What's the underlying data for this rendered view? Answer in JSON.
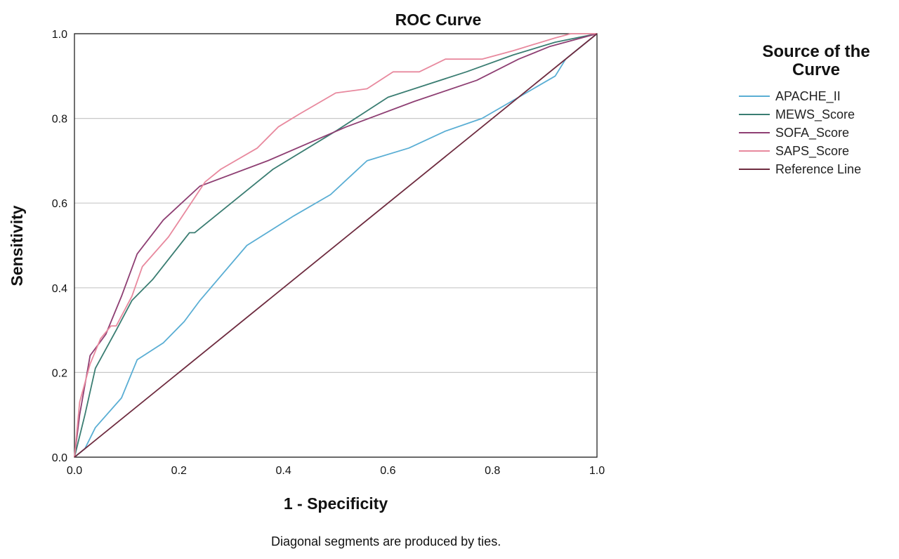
{
  "chart_data": {
    "type": "line",
    "title": "ROC Curve",
    "xlabel": "1 - Specificity",
    "ylabel": "Sensitivity",
    "xlim": [
      0,
      1
    ],
    "ylim": [
      0,
      1
    ],
    "xticks": [
      "0.0",
      "0.2",
      "0.4",
      "0.6",
      "0.8",
      "1.0"
    ],
    "yticks": [
      "0.0",
      "0.2",
      "0.4",
      "0.6",
      "0.8",
      "1.0"
    ],
    "grid": "horizontal",
    "legend": {
      "title_lines": [
        "Source of the",
        "Curve"
      ],
      "placement": "right"
    },
    "footnote": "Diagonal segments are produced by ties.",
    "series": [
      {
        "name": "APACHE_II",
        "color": "#5aaed4",
        "points": [
          [
            0,
            0
          ],
          [
            0.02,
            0.02
          ],
          [
            0.04,
            0.07
          ],
          [
            0.09,
            0.14
          ],
          [
            0.12,
            0.23
          ],
          [
            0.17,
            0.27
          ],
          [
            0.21,
            0.32
          ],
          [
            0.24,
            0.37
          ],
          [
            0.33,
            0.5
          ],
          [
            0.42,
            0.57
          ],
          [
            0.49,
            0.62
          ],
          [
            0.56,
            0.7
          ],
          [
            0.64,
            0.73
          ],
          [
            0.71,
            0.77
          ],
          [
            0.78,
            0.8
          ],
          [
            0.85,
            0.85
          ],
          [
            0.92,
            0.9
          ],
          [
            0.94,
            0.94
          ],
          [
            1.0,
            1.0
          ]
        ]
      },
      {
        "name": "MEWS_Score",
        "color": "#3a7d72",
        "points": [
          [
            0,
            0
          ],
          [
            0.02,
            0.1
          ],
          [
            0.04,
            0.21
          ],
          [
            0.08,
            0.3
          ],
          [
            0.11,
            0.37
          ],
          [
            0.15,
            0.42
          ],
          [
            0.22,
            0.53
          ],
          [
            0.23,
            0.53
          ],
          [
            0.38,
            0.68
          ],
          [
            0.5,
            0.77
          ],
          [
            0.6,
            0.85
          ],
          [
            0.75,
            0.91
          ],
          [
            0.84,
            0.95
          ],
          [
            0.92,
            0.98
          ],
          [
            1.0,
            1.0
          ]
        ]
      },
      {
        "name": "SOFA_Score",
        "color": "#8e3f73",
        "points": [
          [
            0,
            0
          ],
          [
            0.01,
            0.1
          ],
          [
            0.03,
            0.24
          ],
          [
            0.06,
            0.29
          ],
          [
            0.09,
            0.38
          ],
          [
            0.12,
            0.48
          ],
          [
            0.17,
            0.56
          ],
          [
            0.24,
            0.64
          ],
          [
            0.37,
            0.7
          ],
          [
            0.52,
            0.78
          ],
          [
            0.65,
            0.84
          ],
          [
            0.77,
            0.89
          ],
          [
            0.85,
            0.94
          ],
          [
            0.91,
            0.97
          ],
          [
            1.0,
            1.0
          ]
        ]
      },
      {
        "name": "SAPS_Score",
        "color": "#e8899e",
        "points": [
          [
            0,
            0
          ],
          [
            0.01,
            0.13
          ],
          [
            0.03,
            0.22
          ],
          [
            0.05,
            0.28
          ],
          [
            0.07,
            0.31
          ],
          [
            0.08,
            0.31
          ],
          [
            0.11,
            0.38
          ],
          [
            0.13,
            0.45
          ],
          [
            0.18,
            0.52
          ],
          [
            0.25,
            0.65
          ],
          [
            0.28,
            0.68
          ],
          [
            0.35,
            0.73
          ],
          [
            0.39,
            0.78
          ],
          [
            0.43,
            0.81
          ],
          [
            0.5,
            0.86
          ],
          [
            0.56,
            0.87
          ],
          [
            0.61,
            0.91
          ],
          [
            0.66,
            0.91
          ],
          [
            0.71,
            0.94
          ],
          [
            0.78,
            0.94
          ],
          [
            0.84,
            0.96
          ],
          [
            0.92,
            0.99
          ],
          [
            0.95,
            1.0
          ],
          [
            1.0,
            1.0
          ]
        ]
      },
      {
        "name": "Reference Line",
        "color": "#6e2b3f",
        "points": [
          [
            0,
            0
          ],
          [
            1,
            1
          ]
        ]
      }
    ]
  }
}
